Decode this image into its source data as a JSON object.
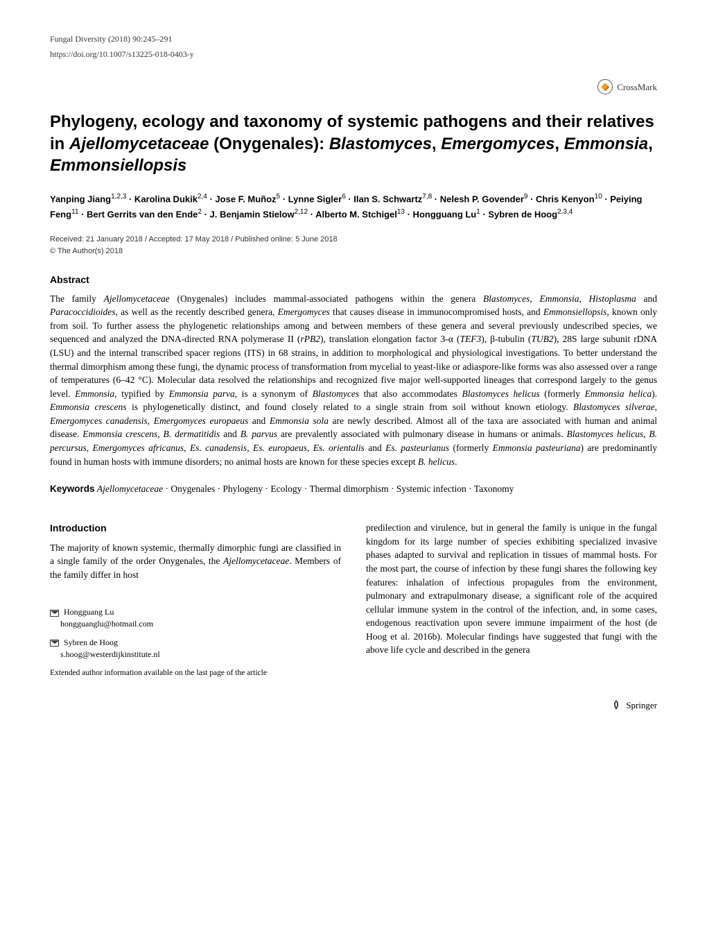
{
  "header": {
    "journal_ref": "Fungal Diversity (2018) 90:245–291",
    "doi": "https://doi.org/10.1007/s13225-018-0403-y",
    "crossmark_label": "CrossMark"
  },
  "title_parts": {
    "p1": "Phylogeny, ecology and taxonomy of systemic pathogens and their relatives in ",
    "i1": "Ajellomycetaceae",
    "p2": " (Onygenales): ",
    "i2": "Blastomyces",
    "p3": ", ",
    "i3": "Emergomyces",
    "p4": ", ",
    "i4": "Emmonsia",
    "p5": ", ",
    "i5": "Emmonsiellopsis"
  },
  "authors_html": "Yanping Jiang<sup>1,2,3</sup> · Karolina Dukik<sup>2,4</sup> · Jose F. Muñoz<sup>5</sup> · Lynne Sigler<sup>6</sup> · Ilan S. Schwartz<sup>7,8</sup> · Nelesh P. Govender<sup>9</sup> · Chris Kenyon<sup>10</sup> · Peiying Feng<sup>11</sup> · Bert Gerrits van den Ende<sup>2</sup> · J. Benjamin Stielow<sup>2,12</sup> · Alberto M. Stchigel<sup>13</sup> · Hongguang Lu<sup>1</sup> · Sybren de Hoog<sup>2,3,4</sup>",
  "dates": "Received: 21 January 2018 / Accepted: 17 May 2018 / Published online: 5 June 2018",
  "copyright": "© The Author(s) 2018",
  "abstract_heading": "Abstract",
  "abstract_html": "The family <span class=\"it\">Ajellomycetaceae</span> (Onygenales) includes mammal-associated pathogens within the genera <span class=\"it\">Blastomyces</span>, <span class=\"it\">Emmonsia</span>, <span class=\"it\">Histoplasma</span> and <span class=\"it\">Paracoccidioides</span>, as well as the recently described genera, <span class=\"it\">Emergomyces</span> that causes disease in immunocompromised hosts, and <span class=\"it\">Emmonsiellopsis</span>, known only from soil. To further assess the phylogenetic relationships among and between members of these genera and several previously undescribed species, we sequenced and analyzed the DNA-directed RNA polymerase II (<span class=\"it\">rPB2</span>), translation elongation factor 3-α (<span class=\"it\">TEF3</span>), β-tubulin (<span class=\"it\">TUB2</span>), 28S large subunit rDNA (LSU) and the internal transcribed spacer regions (ITS) in 68 strains, in addition to morphological and physiological investigations. To better understand the thermal dimorphism among these fungi, the dynamic process of transformation from mycelial to yeast-like or adiaspore-like forms was also assessed over a range of temperatures (6–42 °C). Molecular data resolved the relationships and recognized five major well-supported lineages that correspond largely to the genus level. <span class=\"it\">Emmonsia</span>, typified by <span class=\"it\">Emmonsia parva</span>, is a synonym of <span class=\"it\">Blastomyces</span> that also accommodates <span class=\"it\">Blastomyces helicus</span> (formerly <span class=\"it\">Emmonsia helica</span>). <span class=\"it\">Emmonsia crescens</span> is phylogenetically distinct, and found closely related to a single strain from soil without known etiology. <span class=\"it\">Blastomyces silverae</span>, <span class=\"it\">Emergomyces canadensis</span>, <span class=\"it\">Emergomyces europaeus</span> and <span class=\"it\">Emmonsia sola</span> are newly described. Almost all of the taxa are associated with human and animal disease. <span class=\"it\">Emmonsia crescens</span>, <span class=\"it\">B. dermatitidis</span> and <span class=\"it\">B. parvus</span> are prevalently associated with pulmonary disease in humans or animals. <span class=\"it\">Blastomyces helicus</span>, <span class=\"it\">B. percursus</span>, <span class=\"it\">Emergomyces africanus</span>, <span class=\"it\">Es. canadensis</span>, <span class=\"it\">Es. europaeus</span>, <span class=\"it\">Es. orientalis</span> and <span class=\"it\">Es. pasteurianus</span> (formerly <span class=\"it\">Emmonsia pasteuriana</span>) are predominantly found in human hosts with immune disorders; no animal hosts are known for these species except <span class=\"it\">B. helicus</span>.",
  "keywords": {
    "label": "Keywords",
    "text_html": " <span class=\"it\">Ajellomycetaceae</span> · Onygenales · Phylogeny · Ecology · Thermal dimorphism · Systemic infection · Taxonomy"
  },
  "introduction": {
    "heading": "Introduction",
    "left_p1_html": "The majority of known systemic, thermally dimorphic fungi are classified in a single family of the order Onygenales, the <span class=\"it\">Ajellomycetaceae</span>. Members of the family differ in host",
    "right_p1_html": "predilection and virulence, but in general the family is unique in the fungal kingdom for its large number of species exhibiting specialized invasive phases adapted to survival and replication in tissues of mammal hosts. For the most part, the course of infection by these fungi shares the following key features: inhalation of infectious propagules from the environment, pulmonary and extrapulmonary disease, a significant role of the acquired cellular immune system in the control of the infection, and, in some cases, endogenous reactivation upon severe immune impairment of the host (de Hoog et al. 2016b). Molecular findings have suggested that fungi with the above life cycle and described in the genera"
  },
  "correspondence": {
    "contact1_name": "Hongguang Lu",
    "contact1_email": "hongguanglu@hotmail.com",
    "contact2_name": "Sybren de Hoog",
    "contact2_email": "s.hoog@westerdijkinstitute.nl",
    "extended": "Extended author information available on the last page of the article"
  },
  "footer": {
    "publisher": "Springer"
  },
  "style": {
    "body_font_size_pt": 10,
    "title_font_size_pt": 18,
    "heading_font_size_pt": 11,
    "text_color": "#000000",
    "bg_color": "#ffffff",
    "link_color": "#000000"
  }
}
